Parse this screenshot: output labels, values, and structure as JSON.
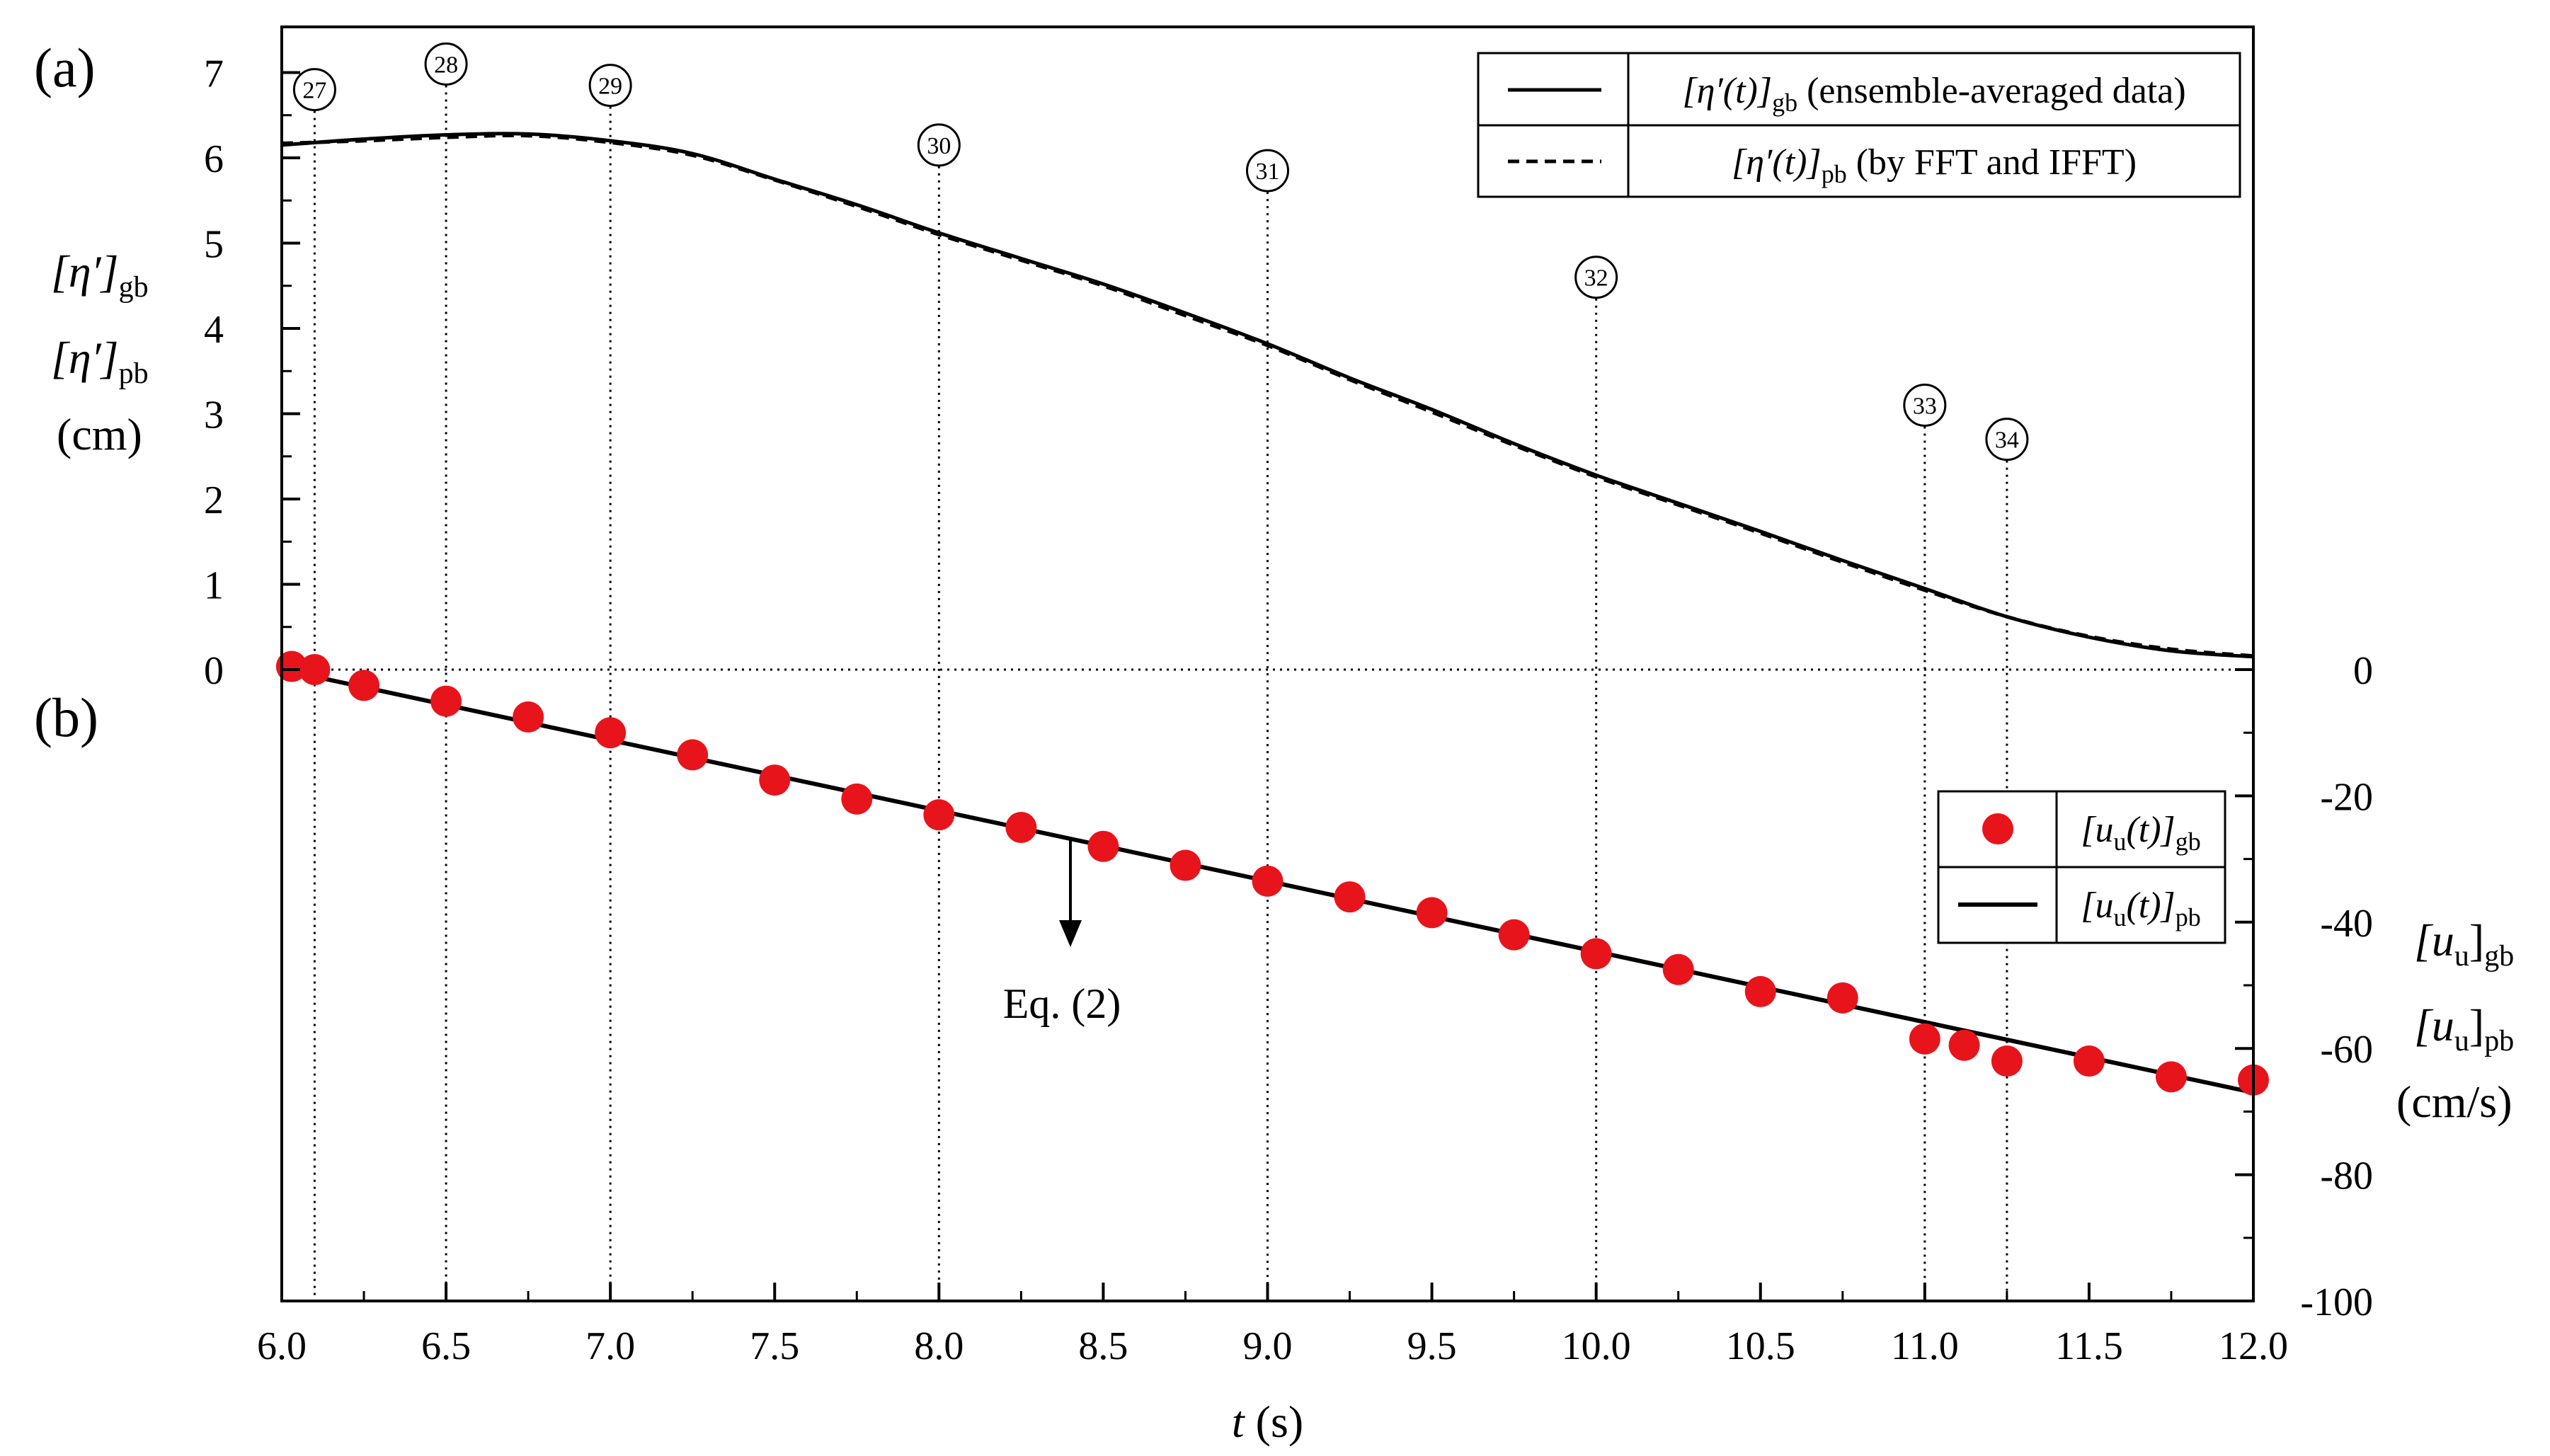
{
  "chart_data": {
    "type": "line",
    "x_axis": {
      "label_var": "t",
      "label_unit": " (s)",
      "range": [
        6.0,
        12.0
      ],
      "ticks": [
        6.0,
        6.5,
        7.0,
        7.5,
        8.0,
        8.5,
        9.0,
        9.5,
        10.0,
        10.5,
        11.0,
        11.5,
        12.0
      ],
      "tick_labels": [
        "6.0",
        "6.5",
        "7.0",
        "7.5",
        "8.0",
        "8.5",
        "9.0",
        "9.5",
        "10.0",
        "10.5",
        "11.0",
        "11.5",
        "12.0"
      ]
    },
    "panel_a": {
      "panel_label": "(a)",
      "y_range": [
        0,
        7.6
      ],
      "y_ticks": [
        0,
        1,
        2,
        3,
        4,
        5,
        6,
        7
      ],
      "y_tick_labels": [
        "0",
        "1",
        "2",
        "3",
        "4",
        "5",
        "6",
        "7"
      ],
      "ylabel": {
        "line1_sym": "[η′]",
        "line1_sub": "gb",
        "line2_sym": "[η′]",
        "line2_sub": "pb",
        "line3": "(cm)"
      },
      "series": [
        {
          "key": "gb",
          "style": "solid",
          "x": [
            6.0,
            6.25,
            6.5,
            6.75,
            7.0,
            7.25,
            7.5,
            7.75,
            8.0,
            8.25,
            8.5,
            8.75,
            9.0,
            9.25,
            9.5,
            9.75,
            10.0,
            10.25,
            10.5,
            10.75,
            11.0,
            11.25,
            11.5,
            11.75,
            12.0
          ],
          "y": [
            6.15,
            6.22,
            6.27,
            6.28,
            6.2,
            6.05,
            5.75,
            5.45,
            5.12,
            4.82,
            4.52,
            4.18,
            3.82,
            3.42,
            3.05,
            2.65,
            2.28,
            1.95,
            1.62,
            1.28,
            0.95,
            0.62,
            0.38,
            0.22,
            0.15
          ]
        },
        {
          "key": "pb",
          "style": "dashed",
          "x": [
            6.0,
            6.25,
            6.5,
            6.75,
            7.0,
            7.25,
            7.5,
            7.75,
            8.0,
            8.25,
            8.5,
            8.75,
            9.0,
            9.25,
            9.5,
            9.75,
            10.0,
            10.25,
            10.5,
            10.75,
            11.0,
            11.25,
            11.5,
            11.75,
            12.0
          ],
          "y": [
            6.17,
            6.2,
            6.24,
            6.26,
            6.18,
            6.03,
            5.74,
            5.43,
            5.1,
            4.8,
            4.5,
            4.15,
            3.8,
            3.4,
            3.02,
            2.63,
            2.26,
            1.93,
            1.6,
            1.26,
            0.93,
            0.62,
            0.39,
            0.24,
            0.16
          ]
        }
      ],
      "legend": [
        {
          "style": "solid",
          "sym": "[η′(t)]",
          "sub": "gb",
          "desc": " (ensemble-averaged data)"
        },
        {
          "style": "dashed",
          "sym": "[η′(t)]",
          "sub": "pb",
          "desc": " (by FFT and IFFT)"
        }
      ],
      "markers": [
        {
          "label": "27",
          "t": 6.1,
          "eta": 6.8
        },
        {
          "label": "28",
          "t": 6.5,
          "eta": 7.1
        },
        {
          "label": "29",
          "t": 7.0,
          "eta": 6.85
        },
        {
          "label": "30",
          "t": 8.0,
          "eta": 6.15
        },
        {
          "label": "31",
          "t": 9.0,
          "eta": 5.85
        },
        {
          "label": "32",
          "t": 10.0,
          "eta": 4.6
        },
        {
          "label": "33",
          "t": 11.0,
          "eta": 3.1
        },
        {
          "label": "34",
          "t": 11.25,
          "eta": 2.7
        }
      ]
    },
    "panel_b": {
      "panel_label": "(b)",
      "y_range": [
        -100,
        0
      ],
      "y_ticks": [
        0,
        -20,
        -40,
        -60,
        -80,
        -100
      ],
      "y_tick_labels": [
        "0",
        "-20",
        "-40",
        "-60",
        "-80",
        "-100"
      ],
      "ylabel": {
        "line1_sym": "[u",
        "line1_sub1": "u",
        "line1_close": "]",
        "line1_sub2": "gb",
        "line2_sub2": "pb",
        "line3": "(cm/s)"
      },
      "series": [
        {
          "key": "gb",
          "style": "markers",
          "color": "#e8141b",
          "x": [
            6.03,
            6.1,
            6.25,
            6.5,
            6.75,
            7.0,
            7.25,
            7.5,
            7.75,
            8.0,
            8.25,
            8.5,
            8.75,
            9.0,
            9.25,
            9.5,
            9.75,
            10.0,
            10.25,
            10.5,
            10.75,
            11.0,
            11.12,
            11.25,
            11.5,
            11.75,
            12.0
          ],
          "y": [
            0.5,
            0,
            -2.5,
            -5,
            -7.5,
            -10,
            -13.5,
            -17.5,
            -20.5,
            -23,
            -25,
            -28,
            -31,
            -33.5,
            -36,
            -38.5,
            -42,
            -45,
            -47.5,
            -51,
            -52,
            -58.5,
            -59.5,
            -62,
            -62,
            -64.5,
            -65
          ]
        },
        {
          "key": "pb",
          "style": "solid",
          "x": [
            6.0,
            12.0
          ],
          "y": [
            0,
            -67
          ]
        }
      ],
      "legend": [
        {
          "style": "marker",
          "sym": "[u",
          "sub1": "u",
          "close": "(t)]",
          "sub": "gb"
        },
        {
          "style": "solid",
          "sym": "[u",
          "sub1": "u",
          "close": "(t)]",
          "sub": "pb"
        }
      ],
      "annotation": {
        "text": "Eq. (2)",
        "t": 8.4
      }
    }
  }
}
